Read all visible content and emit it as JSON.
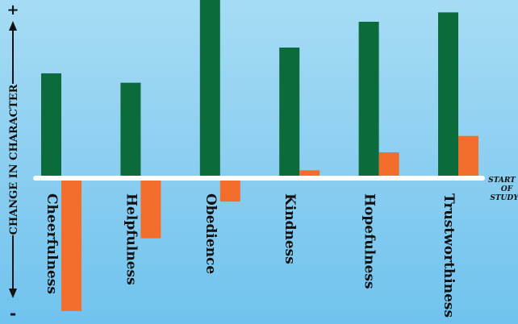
{
  "chart_data": {
    "type": "bar",
    "title": "",
    "ylabel": "CHANGE IN CHARACTER",
    "y_positive_marker": "+",
    "y_negative_marker": "-",
    "baseline_label": [
      "START",
      "OF",
      "STUDY"
    ],
    "categories": [
      "Cheerfulness",
      "Helpfulness",
      "Obedience",
      "Kindness",
      "Hopefulness",
      "Trustworthiness"
    ],
    "ylim": [
      -170,
      230
    ],
    "grid": false,
    "legend": "none",
    "series": [
      {
        "values": [
          134,
          122,
          230,
          167,
          200,
          212
        ],
        "color": "#0b6b3a"
      },
      {
        "values": [
          -170,
          -77,
          -30,
          10,
          33,
          54
        ],
        "color": "#f36e2c"
      }
    ]
  }
}
